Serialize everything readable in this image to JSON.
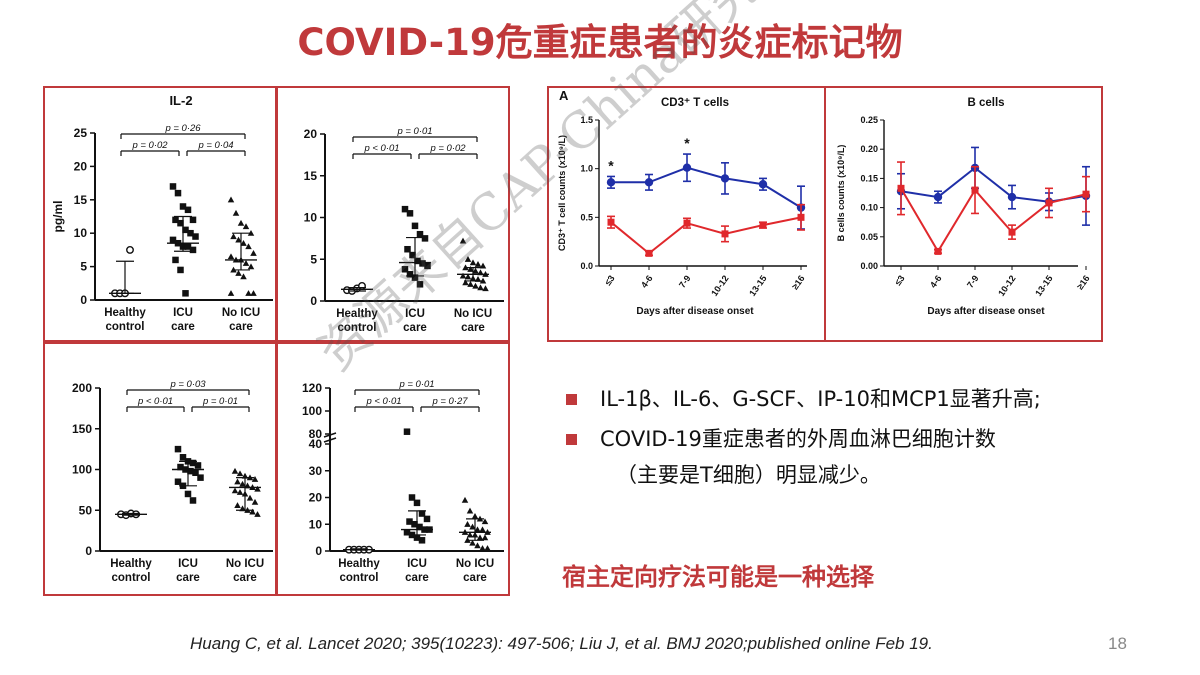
{
  "slide": {
    "title": "COVID-19危重症患者的炎症标记物",
    "bullets": [
      {
        "text": "IL-1β、IL-6、G-SCF、IP-10和MCP1显著升高;"
      },
      {
        "text": "COVID-19重症患者的外周血淋巴细胞计数",
        "continuation": "（主要是T细胞）明显减少。"
      }
    ],
    "highlight": "宿主定向疗法可能是一种选择",
    "citation": "Huang C, et al. Lancet  2020; 395(10223): 497-506; Liu J, et al. BMJ 2020;published online Feb 19.",
    "page_number": "18",
    "watermark": "资源来自CAP-China研究平台",
    "colors": {
      "accent": "#c0393b",
      "blue_series": "#1f2fa8",
      "red_series": "#e0282c"
    }
  },
  "chart_data": [
    {
      "type": "scatter",
      "title": "IL-2",
      "ylabel": "pg/ml",
      "categories": [
        "Healthy control",
        "ICU care",
        "No ICU care"
      ],
      "ylim": [
        0,
        25
      ],
      "yticks": [
        "0",
        "5",
        "10",
        "15",
        "20",
        "25"
      ],
      "markers": [
        "circle",
        "square",
        "triangle"
      ],
      "summary": [
        {
          "median": 1,
          "q1": 1,
          "q3": 5.8
        },
        {
          "median": 8.5,
          "q1": 7.3,
          "q3": 12.5
        },
        {
          "median": 6,
          "q1": 4.5,
          "q3": 10
        }
      ],
      "points": [
        [
          1,
          1,
          1,
          7.5
        ],
        [
          17,
          16,
          14,
          13.5,
          12,
          12,
          11.5,
          10.5,
          10,
          9.5,
          9,
          8.5,
          8,
          8,
          7.5,
          6,
          4.5,
          1
        ],
        [
          15,
          13,
          11.5,
          11,
          10,
          9.5,
          9,
          8.5,
          8,
          7,
          6.5,
          6,
          6,
          5.5,
          5,
          4.5,
          4,
          3.5,
          1,
          1,
          1
        ]
      ],
      "comparisons": [
        {
          "label": "p = 0·26",
          "from": 0,
          "to": 2
        },
        {
          "label": "p = 0·02",
          "from": 0,
          "to": 1
        },
        {
          "label": "p = 0·04",
          "from": 1,
          "to": 2
        }
      ]
    },
    {
      "type": "scatter",
      "categories": [
        "Healthy control",
        "ICU care",
        "No ICU care"
      ],
      "ylim": [
        0,
        20
      ],
      "yticks": [
        "0",
        "5",
        "10",
        "15",
        "20"
      ],
      "markers": [
        "circle",
        "square",
        "triangle"
      ],
      "summary": [
        {
          "median": 1.4,
          "q1": 1.2,
          "q3": 1.6
        },
        {
          "median": 4.6,
          "q1": 3.0,
          "q3": 7.6
        },
        {
          "median": 3.2,
          "q1": 2.4,
          "q3": 4.0
        }
      ],
      "points": [
        [
          1.3,
          1.2,
          1.5,
          1.8
        ],
        [
          11,
          10.5,
          9,
          8,
          7.5,
          6.2,
          5.5,
          4.8,
          4.5,
          4.2,
          3.8,
          3.2,
          2.8,
          2.0
        ],
        [
          7.2,
          5.0,
          4.6,
          4.4,
          4.2,
          4.0,
          3.8,
          3.6,
          3.4,
          3.2,
          3.0,
          2.9,
          2.7,
          2.6,
          2.4,
          2.2,
          2.0,
          1.8,
          1.6,
          1.5
        ]
      ],
      "comparisons": [
        {
          "label": "p = 0·01",
          "from": 0,
          "to": 2
        },
        {
          "label": "p < 0·01",
          "from": 0,
          "to": 1
        },
        {
          "label": "p = 0·02",
          "from": 1,
          "to": 2
        }
      ]
    },
    {
      "type": "scatter",
      "categories": [
        "Healthy control",
        "ICU care",
        "No ICU care"
      ],
      "ylim": [
        0,
        200
      ],
      "yticks": [
        "0",
        "50",
        "100",
        "150",
        "200"
      ],
      "markers": [
        "circle",
        "square",
        "triangle"
      ],
      "summary": [
        {
          "median": 45,
          "q1": 44,
          "q3": 46
        },
        {
          "median": 100,
          "q1": 80,
          "q3": 110
        },
        {
          "median": 78,
          "q1": 50,
          "q3": 90
        }
      ],
      "points": [
        [
          45,
          44,
          46,
          45
        ],
        [
          125,
          115,
          110,
          108,
          105,
          103,
          100,
          98,
          96,
          90,
          85,
          80,
          70,
          62
        ],
        [
          98,
          95,
          92,
          90,
          88,
          85,
          82,
          80,
          78,
          76,
          74,
          72,
          70,
          65,
          60,
          56,
          52,
          50,
          48,
          45
        ]
      ],
      "comparisons": [
        {
          "label": "p = 0·03",
          "from": 0,
          "to": 2
        },
        {
          "label": "p < 0·01",
          "from": 0,
          "to": 1
        },
        {
          "label": "p = 0·01",
          "from": 1,
          "to": 2
        }
      ]
    },
    {
      "type": "scatter",
      "categories": [
        "Healthy control",
        "ICU care",
        "No ICU care"
      ],
      "broken_axis": {
        "lower": [
          0,
          40
        ],
        "upper": [
          80,
          120
        ]
      },
      "yticks_lower": [
        "0",
        "10",
        "20",
        "30",
        "40"
      ],
      "yticks_upper": [
        "80",
        "100",
        "120"
      ],
      "markers": [
        "circle",
        "square",
        "triangle"
      ],
      "summary": [
        {
          "median": 0.5,
          "q1": 0.3,
          "q3": 0.8
        },
        {
          "median": 8,
          "q1": 6,
          "q3": 15
        },
        {
          "median": 7,
          "q1": 4,
          "q3": 12
        }
      ],
      "points": [
        [
          0.5,
          0.5,
          0.5,
          0.5,
          0.5
        ],
        [
          82,
          20,
          18,
          14,
          12,
          11,
          10,
          9,
          8,
          8,
          7,
          6,
          5,
          4
        ],
        [
          19,
          15,
          13,
          12,
          11,
          10,
          9,
          8,
          8,
          7,
          7,
          6,
          6,
          5,
          5,
          4,
          3,
          2,
          1,
          1
        ]
      ],
      "comparisons": [
        {
          "label": "p = 0·01",
          "from": 0,
          "to": 2
        },
        {
          "label": "p < 0·01",
          "from": 0,
          "to": 1
        },
        {
          "label": "p = 0·27",
          "from": 1,
          "to": 2
        }
      ]
    },
    {
      "type": "line",
      "panel_letter": "A",
      "title": "CD3⁺ T cells",
      "xlabel": "Days after disease onset",
      "ylabel": "CD3⁺ T cell counts (x10⁹/L)",
      "x": [
        "≤3",
        "4-6",
        "7-9",
        "10-12",
        "13-15",
        "≥16"
      ],
      "ylim": [
        0,
        1.5
      ],
      "yticks": [
        "0.0",
        "0.5",
        "1.0",
        "1.5"
      ],
      "annotations": [
        {
          "text": "*",
          "x_index": 0
        },
        {
          "text": "*",
          "x_index": 2
        }
      ],
      "series": [
        {
          "color": "#1f2fa8",
          "marker": "circle",
          "values": [
            0.86,
            0.86,
            1.01,
            0.9,
            0.84,
            0.6
          ],
          "err": [
            0.06,
            0.08,
            0.14,
            0.16,
            0.06,
            0.22
          ]
        },
        {
          "color": "#e0282c",
          "marker": "square",
          "values": [
            0.45,
            0.13,
            0.44,
            0.33,
            0.42,
            0.5
          ],
          "err": [
            0.06,
            0.02,
            0.05,
            0.08,
            0.03,
            0.13
          ]
        }
      ]
    },
    {
      "type": "line",
      "title": "B cells",
      "xlabel": "Days after disease onset",
      "ylabel": "B cells counts (x10⁹/L)",
      "x": [
        "≤3",
        "4-6",
        "7-9",
        "10-12",
        "13-15",
        "≥16"
      ],
      "ylim": [
        0,
        0.25
      ],
      "yticks": [
        "0.00",
        "0.05",
        "0.10",
        "0.15",
        "0.20",
        "0.25"
      ],
      "series": [
        {
          "color": "#1f2fa8",
          "marker": "circle",
          "values": [
            0.128,
            0.118,
            0.168,
            0.118,
            0.11,
            0.12
          ],
          "err": [
            0.03,
            0.01,
            0.035,
            0.02,
            0.015,
            0.05
          ]
        },
        {
          "color": "#e0282c",
          "marker": "square",
          "values": [
            0.133,
            0.025,
            0.13,
            0.058,
            0.108,
            0.123
          ],
          "err": [
            0.045,
            0.003,
            0.04,
            0.012,
            0.025,
            0.03
          ]
        }
      ]
    }
  ]
}
